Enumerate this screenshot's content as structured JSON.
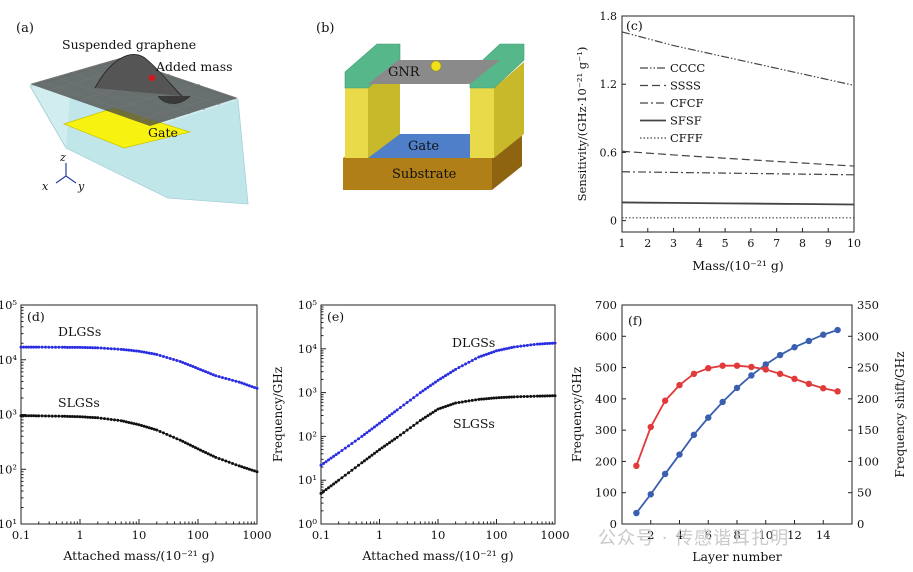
{
  "panels": {
    "a": {
      "tag": "(a)",
      "labels": {
        "graphene": "Suspended graphene",
        "mass": "Added mass",
        "gate": "Gate"
      },
      "axes": {
        "z": "z",
        "x": "x",
        "y": "y"
      }
    },
    "b": {
      "tag": "(b)",
      "labels": {
        "gnr": "GNR",
        "gate": "Gate",
        "substrate": "Substrate"
      }
    }
  },
  "chart_data": [
    {
      "id": "c",
      "tag": "(c)",
      "type": "line",
      "xlabel": "Mass/(10⁻²¹ g)",
      "ylabel": "Sensitivity/(GHz·10⁻²¹ g⁻¹)",
      "xlim": [
        1,
        10
      ],
      "ylim": [
        -0.1,
        1.8
      ],
      "xticks": [
        1,
        2,
        3,
        4,
        5,
        6,
        7,
        8,
        9,
        10
      ],
      "yticks": [
        0,
        0.6,
        1.2,
        1.8
      ],
      "legend_position": "center-left",
      "x": [
        1,
        2,
        3,
        4,
        5,
        6,
        7,
        8,
        9,
        10
      ],
      "series": [
        {
          "name": "CCCC",
          "dash": "8,2,1.5,2,1.5,2",
          "values": [
            1.66,
            1.6,
            1.54,
            1.49,
            1.44,
            1.39,
            1.34,
            1.29,
            1.24,
            1.19
          ]
        },
        {
          "name": "SSSS",
          "dash": "8,4",
          "values": [
            0.61,
            0.594,
            0.578,
            0.563,
            0.549,
            0.535,
            0.521,
            0.507,
            0.493,
            0.48
          ]
        },
        {
          "name": "CFCF",
          "dash": "8,3,2,3",
          "values": [
            0.43,
            0.427,
            0.424,
            0.421,
            0.418,
            0.415,
            0.412,
            0.409,
            0.406,
            0.403
          ]
        },
        {
          "name": "SFSF",
          "dash": "",
          "values": [
            0.16,
            0.158,
            0.156,
            0.154,
            0.152,
            0.15,
            0.148,
            0.146,
            0.144,
            0.142
          ]
        },
        {
          "name": "CFFF",
          "dash": "1.5,2",
          "values": [
            0.025,
            0.025,
            0.025,
            0.025,
            0.025,
            0.025,
            0.025,
            0.025,
            0.025,
            0.025
          ]
        }
      ]
    },
    {
      "id": "d",
      "tag": "(d)",
      "type": "scatter",
      "xscale": "log",
      "yscale": "log",
      "xlabel": "Attached mass/(10⁻²¹ g)",
      "ylabel": "",
      "xlim": [
        0.1,
        1000
      ],
      "ylim": [
        10,
        100000
      ],
      "xtick_labels": [
        "0.1",
        "1",
        "10",
        "100",
        "1000"
      ],
      "ytick_labels": [
        "10¹",
        "10²",
        "10³",
        "10⁴",
        "10⁵"
      ],
      "annotations": [
        "DLGSs",
        "SLGSs"
      ],
      "series": [
        {
          "name": "DLGSs",
          "color": "#2a2ee0",
          "x": [
            0.1,
            0.2,
            0.5,
            1,
            2,
            5,
            10,
            20,
            50,
            100,
            200,
            500,
            1000
          ],
          "values": [
            17000,
            17000,
            16900,
            16800,
            16500,
            15500,
            14300,
            12500,
            9300,
            6900,
            5100,
            3900,
            3000
          ]
        },
        {
          "name": "SLGSs",
          "color": "#111111",
          "x": [
            0.1,
            0.2,
            0.5,
            1,
            2,
            5,
            10,
            20,
            50,
            100,
            200,
            500,
            1000
          ],
          "values": [
            950,
            945,
            930,
            910,
            870,
            770,
            650,
            520,
            340,
            235,
            165,
            115,
            90
          ]
        }
      ]
    },
    {
      "id": "e",
      "tag": "(e)",
      "type": "scatter",
      "xscale": "log",
      "yscale": "log",
      "xlabel": "Attached mass/(10⁻²¹ g)",
      "ylabel": "Frequency/GHz",
      "xlim": [
        0.1,
        1000
      ],
      "ylim": [
        1,
        100000
      ],
      "xtick_labels": [
        "0.1",
        "1",
        "10",
        "100",
        "1000"
      ],
      "ytick_labels": [
        "10⁰",
        "10¹",
        "10²",
        "10³",
        "10⁴",
        "10⁵"
      ],
      "annotations": [
        "DLGSs",
        "SLGSs"
      ],
      "series": [
        {
          "name": "DLGSs",
          "color": "#2a2ee0",
          "x": [
            0.1,
            0.2,
            0.5,
            1,
            2,
            5,
            10,
            20,
            50,
            100,
            200,
            500,
            1000
          ],
          "values": [
            22,
            42,
            100,
            200,
            400,
            1000,
            1900,
            3400,
            6500,
            9000,
            11000,
            12800,
            13500
          ]
        },
        {
          "name": "SLGSs",
          "color": "#111111",
          "x": [
            0.1,
            0.2,
            0.5,
            1,
            2,
            5,
            10,
            20,
            50,
            100,
            200,
            500,
            1000
          ],
          "values": [
            5,
            10,
            25,
            50,
            95,
            230,
            420,
            580,
            700,
            760,
            800,
            830,
            850
          ]
        }
      ]
    },
    {
      "id": "f",
      "tag": "(f)",
      "type": "line",
      "xlabel": "Layer number",
      "ylabel": "Frequency/GHz",
      "ylabel_right": "Frequency shift/GHz",
      "xlim": [
        0,
        16
      ],
      "ylim": [
        0,
        700
      ],
      "ylim_right": [
        0,
        350
      ],
      "xticks": [
        2,
        4,
        6,
        8,
        10,
        12,
        14
      ],
      "yticks": [
        0,
        100,
        200,
        300,
        400,
        500,
        600,
        700
      ],
      "yticks_right": [
        0,
        50,
        100,
        150,
        200,
        250,
        300,
        350
      ],
      "x": [
        1,
        2,
        3,
        4,
        5,
        6,
        7,
        8,
        9,
        10,
        11,
        12,
        13,
        14,
        15
      ],
      "series": [
        {
          "name": "Frequency",
          "axis": "left",
          "color": "#3a5fb0",
          "values": [
            35,
            95,
            160,
            222,
            285,
            340,
            390,
            435,
            475,
            510,
            540,
            565,
            585,
            605,
            620
          ]
        },
        {
          "name": "Frequency shift",
          "axis": "right",
          "color": "#e23a3a",
          "values": [
            93,
            155,
            197,
            222,
            240,
            249,
            253,
            253,
            251,
            247,
            240,
            232,
            224,
            217,
            212
          ]
        }
      ]
    }
  ],
  "watermark": "公众号 · 传感谐耳扎明"
}
